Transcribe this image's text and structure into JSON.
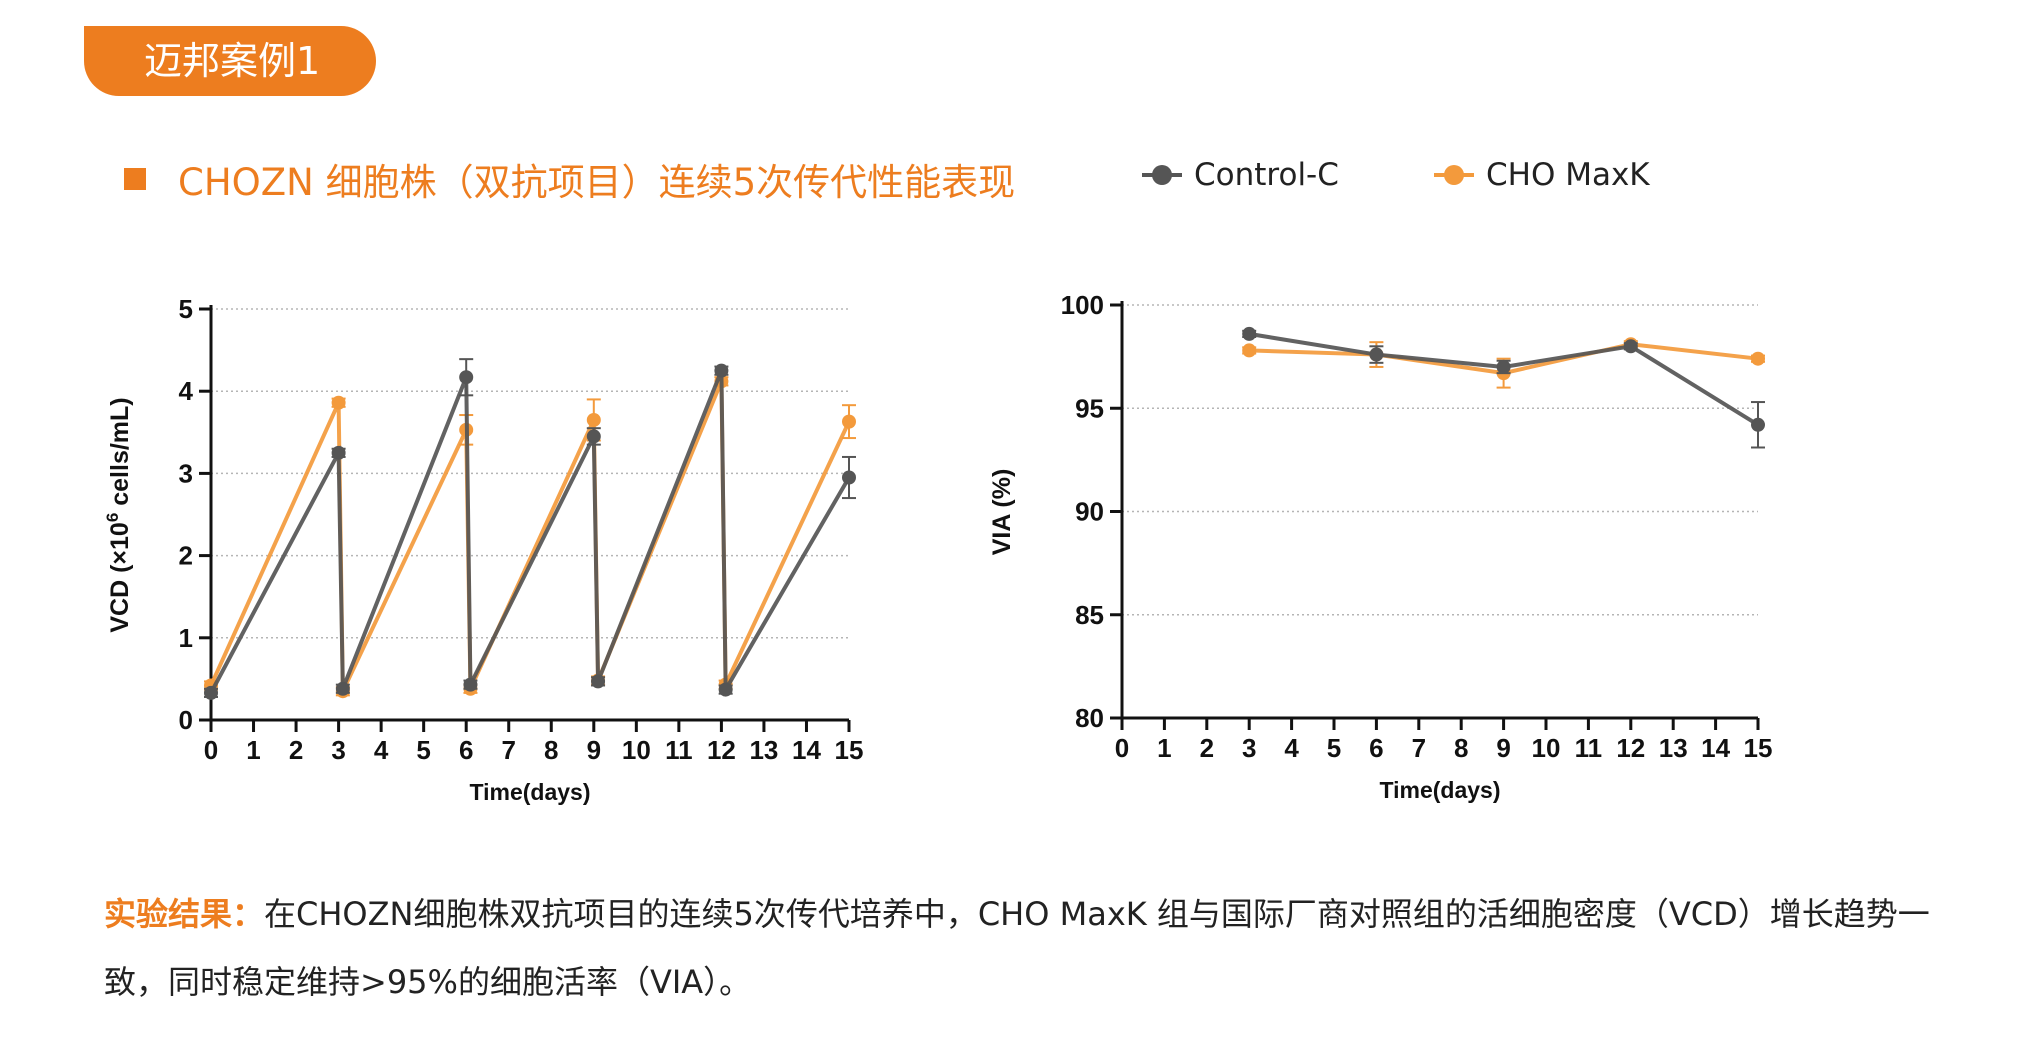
{
  "tag": {
    "label": "迈邦案例1"
  },
  "heading": {
    "text": "CHOZN 细胞株（双抗项目）连续5次传代性能表现"
  },
  "legend": [
    {
      "name": "Control-C",
      "color": "#555555"
    },
    {
      "name": "CHO MaxK",
      "color": "#f39a3c"
    }
  ],
  "result": {
    "label": "实验结果：",
    "text": "在CHOZN细胞株双抗项目的连续5次传代培养中，CHO MaxK 组与国际厂商对照组的活细胞密度（VCD）增长趋势一致，同时稳定维持>95%的细胞活率（VIA）。"
  },
  "chart_data": [
    {
      "type": "line",
      "xlabel": "Time(days)",
      "ylabel_main": "VCD (×10",
      "ylabel_sup": "6",
      "ylabel_tail": " cells/mL)",
      "xlim": [
        0,
        15
      ],
      "ylim": [
        0,
        5
      ],
      "xticks": [
        "0",
        "1",
        "2",
        "3",
        "4",
        "5",
        "6",
        "7",
        "8",
        "9",
        "10",
        "11",
        "12",
        "13",
        "14",
        "15"
      ],
      "yticks": [
        "0",
        "1",
        "2",
        "3",
        "4",
        "5"
      ],
      "grid": "horizontal dotted",
      "series": [
        {
          "name": "Control-C",
          "color": "#555555",
          "x": [
            0,
            3,
            3.1,
            6,
            6.1,
            9,
            9.1,
            12,
            12.1,
            15
          ],
          "y": [
            0.33,
            3.25,
            0.38,
            4.17,
            0.43,
            3.45,
            0.47,
            4.25,
            0.37,
            2.95
          ],
          "err": [
            0.05,
            0.05,
            0.05,
            0.22,
            0.05,
            0.1,
            0.05,
            0.05,
            0.05,
            0.25
          ]
        },
        {
          "name": "CHO MaxK",
          "color": "#f39a3c",
          "x": [
            0,
            3,
            3.1,
            6,
            6.1,
            9,
            9.1,
            12,
            12.1,
            15
          ],
          "y": [
            0.42,
            3.86,
            0.35,
            3.53,
            0.38,
            3.65,
            0.48,
            4.12,
            0.43,
            3.63
          ],
          "err": [
            0.05,
            0.05,
            0.05,
            0.18,
            0.05,
            0.25,
            0.05,
            0.05,
            0.05,
            0.2
          ]
        }
      ]
    },
    {
      "type": "line",
      "xlabel": "Time(days)",
      "ylabel": "VIA (%)",
      "xlim": [
        0,
        15
      ],
      "ylim": [
        80,
        100
      ],
      "xticks": [
        "0",
        "1",
        "2",
        "3",
        "4",
        "5",
        "6",
        "7",
        "8",
        "9",
        "10",
        "11",
        "12",
        "13",
        "14",
        "15"
      ],
      "yticks": [
        "80",
        "85",
        "90",
        "95",
        "100"
      ],
      "grid": "horizontal dotted",
      "series": [
        {
          "name": "Control-C",
          "color": "#555555",
          "x": [
            3,
            6,
            9,
            12,
            15
          ],
          "y": [
            98.6,
            97.6,
            97.0,
            98.0,
            94.2
          ],
          "err": [
            0.15,
            0.4,
            0.3,
            0.15,
            1.1
          ]
        },
        {
          "name": "CHO MaxK",
          "color": "#f39a3c",
          "x": [
            3,
            6,
            9,
            12,
            15
          ],
          "y": [
            97.8,
            97.6,
            96.7,
            98.1,
            97.4
          ],
          "err": [
            0.15,
            0.6,
            0.7,
            0.15,
            0.15
          ]
        }
      ]
    }
  ]
}
